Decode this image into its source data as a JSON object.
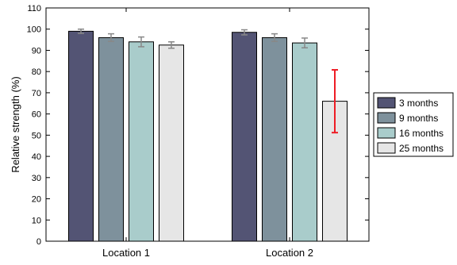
{
  "chart_data": {
    "type": "bar",
    "categories": [
      "Location 1",
      "Location 2"
    ],
    "ylabel": "Relative strength (%)",
    "xlabel": "",
    "title": "",
    "ylim": [
      0,
      110
    ],
    "yticks": [
      0,
      10,
      20,
      30,
      40,
      50,
      60,
      70,
      80,
      90,
      100,
      110
    ],
    "grid": false,
    "legend_position": "right",
    "series": [
      {
        "name": "3 months",
        "color": "#535474",
        "values": [
          99.0,
          98.5
        ],
        "errors": [
          1.0,
          1.2
        ],
        "error_colors": [
          "#888888",
          "#888888"
        ]
      },
      {
        "name": "9 months",
        "color": "#7e919c",
        "values": [
          96.0,
          96.0
        ],
        "errors": [
          1.8,
          1.8
        ],
        "error_colors": [
          "#888888",
          "#888888"
        ]
      },
      {
        "name": "16 months",
        "color": "#a9cccb",
        "values": [
          94.0,
          93.5
        ],
        "errors": [
          2.3,
          2.3
        ],
        "error_colors": [
          "#888888",
          "#888888"
        ]
      },
      {
        "name": "25 months",
        "color": "#e6e6e6",
        "values": [
          92.5,
          66.0
        ],
        "errors": [
          1.5,
          14.8
        ],
        "error_colors": [
          "#888888",
          "#ee1c25"
        ]
      }
    ]
  }
}
